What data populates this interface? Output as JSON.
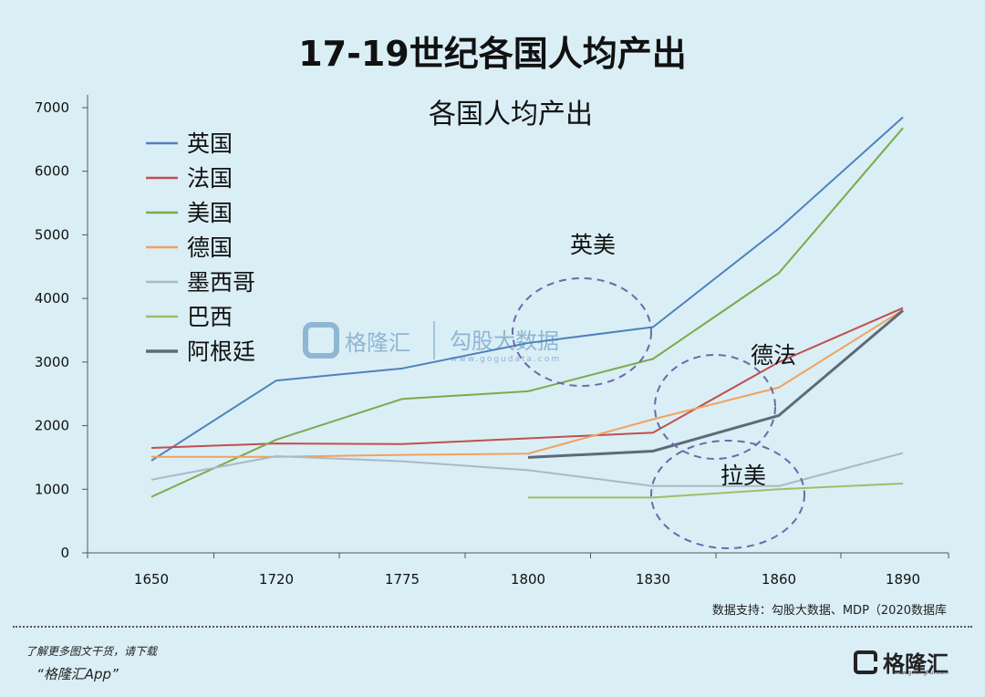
{
  "page": {
    "title": "17-19世纪各国人均产出",
    "source": "数据支持：勾股大数据、MDP（2020数据库",
    "footer_line1": "了解更多图文干货，请下载",
    "footer_line2": "“格隆汇App”",
    "footer_logo_name": "格隆汇",
    "footer_logo_url": "www.gelonghui.com"
  },
  "watermark": {
    "brand": "格隆汇",
    "brand2": "勾股大数据",
    "url": "www.gogudata.com"
  },
  "chart_data": {
    "type": "line",
    "title": "各国人均产出",
    "xlabel": "",
    "ylabel": "",
    "categories": [
      "1650",
      "1720",
      "1775",
      "1800",
      "1830",
      "1860",
      "1890"
    ],
    "ylim": [
      0,
      7000
    ],
    "yticks": [
      0,
      1000,
      2000,
      3000,
      4000,
      5000,
      6000,
      7000
    ],
    "grid": false,
    "legend": "top-left",
    "series": [
      {
        "name": "英国",
        "color": "#4f81bd",
        "values": [
          1450,
          2710,
          2900,
          3300,
          3550,
          5100,
          6850
        ]
      },
      {
        "name": "法国",
        "color": "#c0504d",
        "values": [
          1650,
          1720,
          1710,
          1800,
          1890,
          3000,
          3850
        ]
      },
      {
        "name": "美国",
        "color": "#7aab4a",
        "values": [
          880,
          1780,
          2420,
          2540,
          3050,
          4400,
          6680
        ]
      },
      {
        "name": "德国",
        "color": "#f0a25e",
        "values": [
          1510,
          1510,
          1540,
          1560,
          2100,
          2600,
          3820
        ]
      },
      {
        "name": "墨西哥",
        "color": "#a9b9c6",
        "values": [
          1150,
          1520,
          1440,
          1300,
          1050,
          1050,
          1570
        ]
      },
      {
        "name": "巴西",
        "color": "#9fbd6a",
        "values": [
          null,
          null,
          null,
          870,
          870,
          1000,
          1090
        ]
      },
      {
        "name": "阿根廷",
        "color": "#5f6a78",
        "values": [
          null,
          null,
          null,
          1500,
          1600,
          2160,
          3810
        ]
      }
    ],
    "annotations": [
      "英美",
      "德法",
      "拉美"
    ]
  }
}
